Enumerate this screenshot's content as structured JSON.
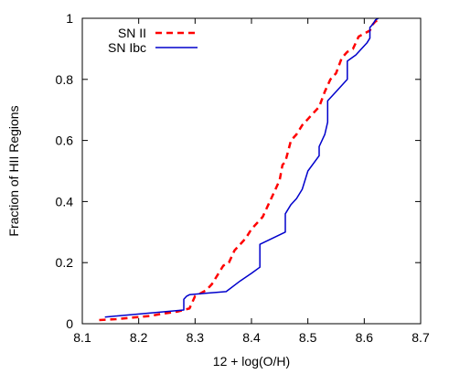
{
  "chart_data": {
    "type": "line",
    "xlabel": "12 + log(O/H)",
    "ylabel": "Fraction of HII Regions",
    "xlim": [
      8.1,
      8.7
    ],
    "ylim": [
      0,
      1
    ],
    "xticks": [
      "8.1",
      "8.2",
      "8.3",
      "8.4",
      "8.5",
      "8.6",
      "8.7"
    ],
    "yticks": [
      "0",
      "0.2",
      "0.4",
      "0.6",
      "0.8",
      "1"
    ],
    "grid": false,
    "legend_position": "top-left",
    "series": [
      {
        "name": "SN II",
        "color": "#ff0000",
        "style": "dashed",
        "points": [
          [
            8.13,
            0.012
          ],
          [
            8.16,
            0.015
          ],
          [
            8.19,
            0.02
          ],
          [
            8.22,
            0.025
          ],
          [
            8.24,
            0.032
          ],
          [
            8.27,
            0.04
          ],
          [
            8.29,
            0.05
          ],
          [
            8.295,
            0.07
          ],
          [
            8.3,
            0.09
          ],
          [
            8.32,
            0.11
          ],
          [
            8.33,
            0.13
          ],
          [
            8.34,
            0.16
          ],
          [
            8.35,
            0.19
          ],
          [
            8.36,
            0.2
          ],
          [
            8.37,
            0.24
          ],
          [
            8.38,
            0.26
          ],
          [
            8.39,
            0.28
          ],
          [
            8.4,
            0.31
          ],
          [
            8.41,
            0.33
          ],
          [
            8.42,
            0.35
          ],
          [
            8.43,
            0.39
          ],
          [
            8.44,
            0.43
          ],
          [
            8.45,
            0.47
          ],
          [
            8.455,
            0.52
          ],
          [
            8.46,
            0.53
          ],
          [
            8.47,
            0.6
          ],
          [
            8.48,
            0.62
          ],
          [
            8.49,
            0.65
          ],
          [
            8.5,
            0.67
          ],
          [
            8.51,
            0.69
          ],
          [
            8.52,
            0.71
          ],
          [
            8.53,
            0.76
          ],
          [
            8.54,
            0.8
          ],
          [
            8.55,
            0.82
          ],
          [
            8.56,
            0.87
          ],
          [
            8.57,
            0.89
          ],
          [
            8.58,
            0.9
          ],
          [
            8.59,
            0.94
          ],
          [
            8.6,
            0.95
          ],
          [
            8.61,
            0.96
          ],
          [
            8.615,
            0.98
          ],
          [
            8.62,
            0.99
          ],
          [
            8.63,
            0.995
          ]
        ]
      },
      {
        "name": "SN Ibc",
        "color": "#0000cc",
        "style": "solid",
        "points": [
          [
            8.14,
            0.022
          ],
          [
            8.28,
            0.045
          ],
          [
            8.28,
            0.08
          ],
          [
            8.285,
            0.09
          ],
          [
            8.29,
            0.095
          ],
          [
            8.32,
            0.1
          ],
          [
            8.355,
            0.105
          ],
          [
            8.38,
            0.14
          ],
          [
            8.4,
            0.165
          ],
          [
            8.415,
            0.185
          ],
          [
            8.415,
            0.26
          ],
          [
            8.46,
            0.3
          ],
          [
            8.46,
            0.36
          ],
          [
            8.47,
            0.39
          ],
          [
            8.48,
            0.41
          ],
          [
            8.49,
            0.44
          ],
          [
            8.5,
            0.5
          ],
          [
            8.52,
            0.55
          ],
          [
            8.52,
            0.58
          ],
          [
            8.53,
            0.62
          ],
          [
            8.535,
            0.66
          ],
          [
            8.535,
            0.73
          ],
          [
            8.55,
            0.76
          ],
          [
            8.57,
            0.8
          ],
          [
            8.57,
            0.86
          ],
          [
            8.585,
            0.88
          ],
          [
            8.59,
            0.89
          ],
          [
            8.605,
            0.92
          ],
          [
            8.61,
            0.935
          ],
          [
            8.61,
            0.97
          ],
          [
            8.615,
            0.98
          ],
          [
            8.62,
            0.995
          ],
          [
            8.625,
            1.0
          ]
        ]
      }
    ]
  }
}
